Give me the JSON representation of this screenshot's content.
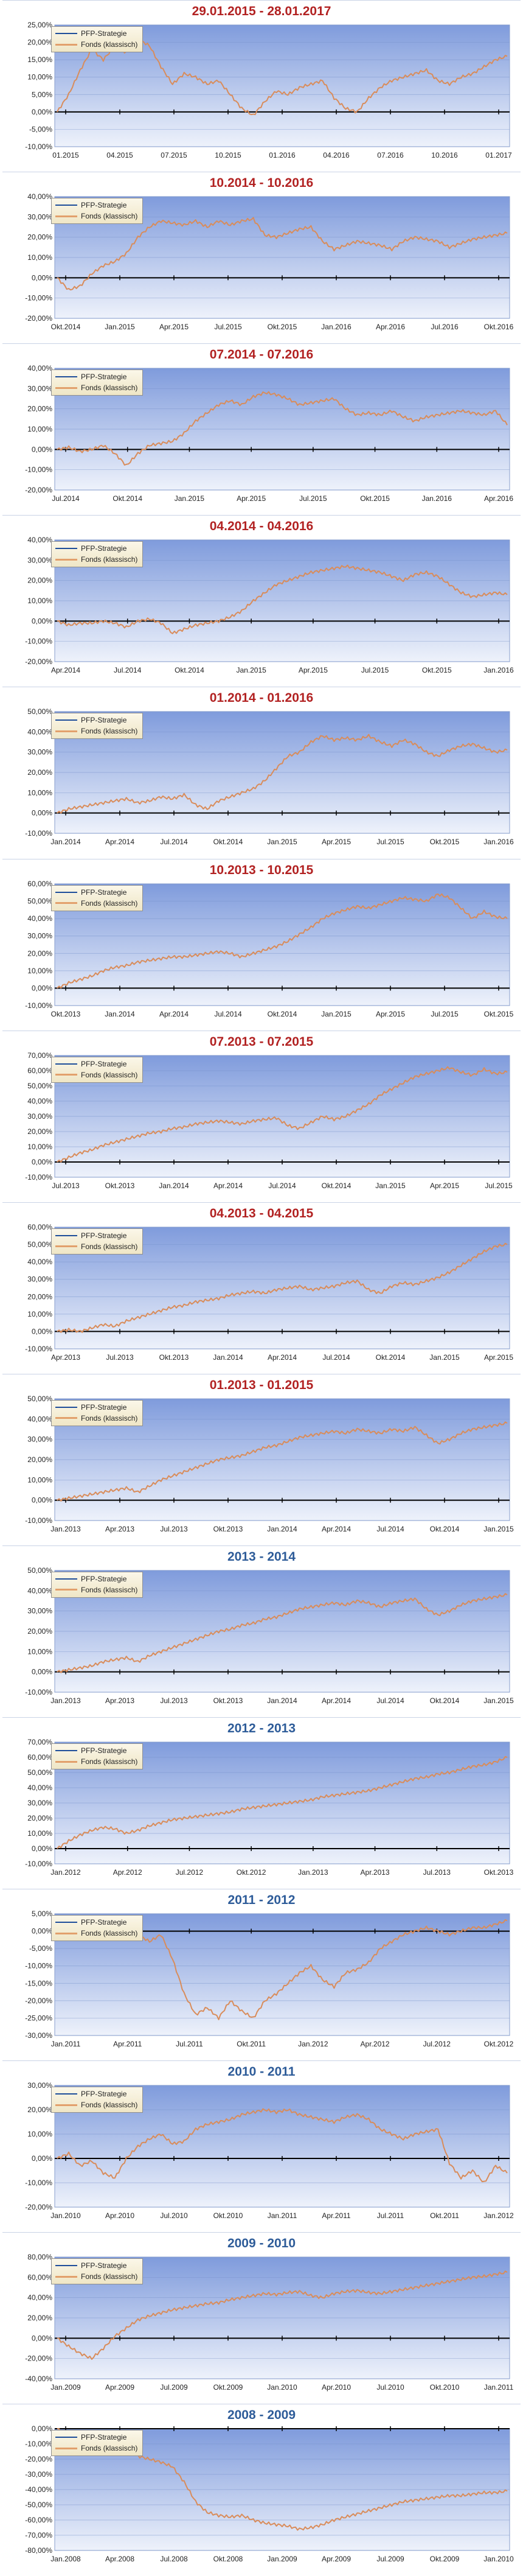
{
  "colors": {
    "plot_bg_top": "#7f9bdc",
    "plot_bg_bottom": "#eef2fb",
    "fund_line": "#d98c5a",
    "strategy_line": "#1f4e9a",
    "title_red": "#b22222",
    "title_blue": "#2e5c99",
    "zero_axis": "#000000",
    "gridline": "#7590c8"
  },
  "legend": {
    "strategy": "PFP-Strategie",
    "fund": "Fonds (klassisch)"
  },
  "chart_data": [
    {
      "type": "line",
      "title": "29.01.2015 - 28.01.2017",
      "title_color": "red",
      "y_ticks": [
        "25,00%",
        "20,00%",
        "15,00%",
        "10,00%",
        "5,00%",
        "0,00%",
        "-5,00%",
        "-10,00%"
      ],
      "ylim": [
        -10,
        25
      ],
      "x_ticks": [
        "01.2015",
        "04.2015",
        "07.2015",
        "10.2015",
        "01.2016",
        "04.2016",
        "07.2016",
        "10.2016",
        "01.2017"
      ],
      "series": [
        {
          "name": "Fonds (klassisch)",
          "values": [
            0,
            5,
            12,
            18,
            15,
            19,
            17,
            21,
            19,
            13,
            8,
            11,
            10,
            8,
            9,
            5,
            1,
            -1,
            3,
            6,
            5,
            7,
            8,
            9,
            4,
            1,
            0,
            4,
            7,
            9,
            10,
            11,
            12,
            9,
            8,
            10,
            11,
            13,
            15,
            16
          ]
        }
      ]
    },
    {
      "type": "line",
      "title": "10.2014 - 10.2016",
      "title_color": "red",
      "y_ticks": [
        "40,00%",
        "30,00%",
        "20,00%",
        "10,00%",
        "0,00%",
        "-10,00%",
        "-20,00%"
      ],
      "ylim": [
        -20,
        40
      ],
      "x_ticks": [
        "Okt.2014",
        "Jan.2015",
        "Apr.2015",
        "Jul.2015",
        "Okt.2015",
        "Jan.2016",
        "Apr.2016",
        "Jul.2016",
        "Okt.2016"
      ],
      "series": [
        {
          "name": "Fonds (klassisch)",
          "values": [
            0,
            -6,
            -4,
            2,
            6,
            8,
            12,
            20,
            25,
            28,
            27,
            26,
            28,
            25,
            28,
            26,
            28,
            29,
            21,
            20,
            22,
            24,
            25,
            18,
            14,
            16,
            18,
            17,
            16,
            14,
            18,
            20,
            19,
            18,
            15,
            17,
            19,
            20,
            21,
            22
          ]
        }
      ]
    },
    {
      "type": "line",
      "title": "07.2014 - 07.2016",
      "title_color": "red",
      "y_ticks": [
        "40,00%",
        "30,00%",
        "20,00%",
        "10,00%",
        "0,00%",
        "-10,00%",
        "-20,00%"
      ],
      "ylim": [
        -20,
        40
      ],
      "x_ticks": [
        "Jul.2014",
        "Okt.2014",
        "Jan.2015",
        "Apr.2015",
        "Jul.2015",
        "Okt.2015",
        "Jan.2016",
        "Apr.2016"
      ],
      "series": [
        {
          "name": "Fonds (klassisch)",
          "values": [
            0,
            1,
            -1,
            0,
            2,
            -2,
            -8,
            -2,
            2,
            3,
            4,
            8,
            14,
            18,
            22,
            24,
            22,
            26,
            28,
            27,
            25,
            22,
            23,
            24,
            25,
            20,
            17,
            18,
            17,
            19,
            16,
            14,
            16,
            17,
            18,
            19,
            18,
            17,
            19,
            12
          ]
        }
      ]
    },
    {
      "type": "line",
      "title": "04.2014 - 04.2016",
      "title_color": "red",
      "y_ticks": [
        "40,00%",
        "30,00%",
        "20,00%",
        "10,00%",
        "0,00%",
        "-10,00%",
        "-20,00%"
      ],
      "ylim": [
        -20,
        40
      ],
      "x_ticks": [
        "Apr.2014",
        "Jul.2014",
        "Okt.2014",
        "Jan.2015",
        "Apr.2015",
        "Jul.2015",
        "Okt.2015",
        "Jan.2016"
      ],
      "series": [
        {
          "name": "Fonds (klassisch)",
          "values": [
            0,
            -2,
            -1,
            -1,
            0,
            -1,
            -3,
            0,
            1,
            -1,
            -6,
            -4,
            -2,
            -1,
            0,
            2,
            5,
            10,
            14,
            18,
            20,
            22,
            24,
            25,
            26,
            27,
            26,
            25,
            24,
            22,
            20,
            23,
            24,
            22,
            18,
            14,
            12,
            13,
            14,
            13
          ]
        }
      ]
    },
    {
      "type": "line",
      "title": "01.2014 - 01.2016",
      "title_color": "red",
      "y_ticks": [
        "50,00%",
        "40,00%",
        "30,00%",
        "20,00%",
        "10,00%",
        "0,00%",
        "-10,00%"
      ],
      "ylim": [
        -10,
        50
      ],
      "x_ticks": [
        "Jan.2014",
        "Apr.2014",
        "Jul.2014",
        "Okt.2014",
        "Jan.2015",
        "Apr.2015",
        "Jul.2015",
        "Okt.2015",
        "Jan.2016"
      ],
      "series": [
        {
          "name": "Fonds (klassisch)",
          "values": [
            0,
            2,
            3,
            4,
            5,
            6,
            7,
            5,
            6,
            8,
            7,
            9,
            4,
            2,
            6,
            8,
            10,
            12,
            16,
            22,
            28,
            30,
            35,
            38,
            36,
            37,
            36,
            38,
            35,
            33,
            36,
            34,
            30,
            28,
            31,
            33,
            34,
            32,
            30,
            31
          ]
        }
      ]
    },
    {
      "type": "line",
      "title": "10.2013 - 10.2015",
      "title_color": "red",
      "y_ticks": [
        "60,00%",
        "50,00%",
        "40,00%",
        "30,00%",
        "20,00%",
        "10,00%",
        "0,00%",
        "-10,00%"
      ],
      "ylim": [
        -10,
        60
      ],
      "x_ticks": [
        "Okt.2013",
        "Jan.2014",
        "Apr.2014",
        "Jul.2014",
        "Okt.2014",
        "Jan.2015",
        "Apr.2015",
        "Jul.2015",
        "Okt.2015"
      ],
      "series": [
        {
          "name": "Fonds (klassisch)",
          "values": [
            0,
            3,
            5,
            7,
            10,
            12,
            13,
            15,
            16,
            17,
            18,
            18,
            19,
            20,
            21,
            20,
            18,
            20,
            22,
            24,
            27,
            31,
            35,
            40,
            43,
            45,
            47,
            46,
            48,
            50,
            52,
            51,
            50,
            54,
            52,
            46,
            40,
            44,
            41,
            40
          ]
        }
      ]
    },
    {
      "type": "line",
      "title": "07.2013 - 07.2015",
      "title_color": "red",
      "y_ticks": [
        "70,00%",
        "60,00%",
        "50,00%",
        "40,00%",
        "30,00%",
        "20,00%",
        "10,00%",
        "0,00%",
        "-10,00%"
      ],
      "ylim": [
        -10,
        70
      ],
      "x_ticks": [
        "Jul.2013",
        "Okt.2013",
        "Jan.2014",
        "Apr.2014",
        "Jul.2014",
        "Okt.2014",
        "Jan.2015",
        "Apr.2015",
        "Jul.2015"
      ],
      "series": [
        {
          "name": "Fonds (klassisch)",
          "values": [
            0,
            3,
            6,
            8,
            11,
            13,
            15,
            17,
            19,
            20,
            22,
            23,
            25,
            26,
            27,
            26,
            25,
            27,
            28,
            29,
            24,
            22,
            26,
            30,
            28,
            30,
            34,
            38,
            44,
            48,
            52,
            56,
            58,
            60,
            62,
            59,
            57,
            61,
            58,
            59
          ]
        }
      ]
    },
    {
      "type": "line",
      "title": "04.2013 - 04.2015",
      "title_color": "red",
      "y_ticks": [
        "60,00%",
        "50,00%",
        "40,00%",
        "30,00%",
        "20,00%",
        "10,00%",
        "0,00%",
        "-10,00%"
      ],
      "ylim": [
        -10,
        60
      ],
      "x_ticks": [
        "Apr.2013",
        "Jul.2013",
        "Okt.2013",
        "Jan.2014",
        "Apr.2014",
        "Jul.2014",
        "Okt.2014",
        "Jan.2015",
        "Apr.2015"
      ],
      "series": [
        {
          "name": "Fonds (klassisch)",
          "values": [
            0,
            1,
            0,
            2,
            4,
            3,
            6,
            8,
            10,
            12,
            14,
            15,
            17,
            18,
            19,
            21,
            22,
            23,
            22,
            24,
            25,
            26,
            24,
            25,
            26,
            28,
            29,
            24,
            22,
            26,
            28,
            27,
            29,
            31,
            34,
            38,
            42,
            46,
            49,
            50
          ]
        }
      ]
    },
    {
      "type": "line",
      "title": "01.2013 - 01.2015",
      "title_color": "red",
      "y_ticks": [
        "50,00%",
        "40,00%",
        "30,00%",
        "20,00%",
        "10,00%",
        "0,00%",
        "-10,00%"
      ],
      "ylim": [
        -10,
        50
      ],
      "x_ticks": [
        "Jan.2013",
        "Apr.2013",
        "Jul.2013",
        "Okt.2013",
        "Jan.2014",
        "Apr.2014",
        "Jul.2014",
        "Okt.2014",
        "Jan.2015"
      ],
      "series": [
        {
          "name": "Fonds (klassisch)",
          "values": [
            0,
            1,
            2,
            3,
            4,
            5,
            6,
            4,
            7,
            10,
            12,
            14,
            16,
            18,
            20,
            21,
            22,
            24,
            26,
            27,
            29,
            31,
            32,
            33,
            34,
            33,
            35,
            34,
            33,
            35,
            34,
            36,
            32,
            28,
            30,
            33,
            35,
            36,
            37,
            38
          ]
        }
      ]
    },
    {
      "type": "line",
      "title": "2013 - 2014",
      "title_color": "blue",
      "y_ticks": [
        "50,00%",
        "40,00%",
        "30,00%",
        "20,00%",
        "10,00%",
        "0,00%",
        "-10,00%"
      ],
      "ylim": [
        -10,
        50
      ],
      "x_ticks": [
        "Jan.2013",
        "Apr.2013",
        "Jul.2013",
        "Okt.2013",
        "Jan.2014",
        "Apr.2014",
        "Jul.2014",
        "Okt.2014",
        "Jan.2015"
      ],
      "series": [
        {
          "name": "Fonds (klassisch)",
          "values": [
            0,
            1,
            2,
            3,
            5,
            6,
            7,
            5,
            8,
            10,
            12,
            14,
            16,
            18,
            20,
            21,
            23,
            24,
            26,
            27,
            29,
            31,
            32,
            33,
            34,
            33,
            35,
            34,
            32,
            34,
            35,
            36,
            31,
            28,
            30,
            33,
            35,
            36,
            37,
            38
          ]
        }
      ]
    },
    {
      "type": "line",
      "title": "2012 - 2013",
      "title_color": "blue",
      "y_ticks": [
        "70,00%",
        "60,00%",
        "50,00%",
        "40,00%",
        "30,00%",
        "20,00%",
        "10,00%",
        "0,00%",
        "-10,00%"
      ],
      "ylim": [
        -10,
        70
      ],
      "x_ticks": [
        "Jan.2012",
        "Apr.2012",
        "Jul.2012",
        "Okt.2012",
        "Jan.2013",
        "Apr.2013",
        "Jul.2013",
        "Okt.2013"
      ],
      "series": [
        {
          "name": "Fonds (klassisch)",
          "values": [
            0,
            5,
            9,
            12,
            14,
            13,
            10,
            12,
            15,
            17,
            19,
            20,
            21,
            22,
            23,
            24,
            26,
            27,
            28,
            29,
            30,
            31,
            32,
            34,
            35,
            36,
            37,
            38,
            40,
            42,
            44,
            46,
            47,
            49,
            50,
            52,
            54,
            55,
            57,
            60
          ]
        }
      ]
    },
    {
      "type": "line",
      "title": "2011 - 2012",
      "title_color": "blue",
      "y_ticks": [
        "5,00%",
        "0,00%",
        "-5,00%",
        "-10,00%",
        "-15,00%",
        "-20,00%",
        "-25,00%",
        "-30,00%"
      ],
      "ylim": [
        -30,
        5
      ],
      "x_ticks": [
        "Jan.2011",
        "Apr.2011",
        "Jul.2011",
        "Okt.2011",
        "Jan.2012",
        "Apr.2012",
        "Jul.2012",
        "Okt.2012"
      ],
      "series": [
        {
          "name": "Fonds (klassisch)",
          "values": [
            0,
            1,
            -1,
            0,
            -2,
            0,
            -1,
            -1,
            -3,
            -1,
            -8,
            -18,
            -24,
            -22,
            -25,
            -20,
            -23,
            -25,
            -20,
            -18,
            -15,
            -12,
            -10,
            -14,
            -16,
            -12,
            -11,
            -9,
            -5,
            -3,
            -1,
            0,
            1,
            0,
            -1,
            0,
            1,
            1,
            2,
            3
          ]
        }
      ]
    },
    {
      "type": "line",
      "title": "2010 - 2011",
      "title_color": "blue",
      "y_ticks": [
        "30,00%",
        "20,00%",
        "10,00%",
        "0,00%",
        "-10,00%",
        "-20,00%"
      ],
      "ylim": [
        -20,
        30
      ],
      "x_ticks": [
        "Jan.2010",
        "Apr.2010",
        "Jul.2010",
        "Okt.2010",
        "Jan.2011",
        "Apr.2011",
        "Jul.2011",
        "Okt.2011",
        "Jan.2012"
      ],
      "series": [
        {
          "name": "Fonds (klassisch)",
          "values": [
            0,
            2,
            -3,
            -1,
            -6,
            -8,
            0,
            5,
            8,
            10,
            6,
            7,
            12,
            14,
            15,
            16,
            18,
            19,
            20,
            19,
            20,
            18,
            17,
            16,
            15,
            17,
            18,
            16,
            12,
            10,
            8,
            10,
            11,
            12,
            -2,
            -8,
            -5,
            -10,
            -3,
            -6
          ]
        }
      ]
    },
    {
      "type": "line",
      "title": "2009 - 2010",
      "title_color": "blue",
      "y_ticks": [
        "80,00%",
        "60,00%",
        "40,00%",
        "20,00%",
        "0,00%",
        "-20,00%",
        "-40,00%"
      ],
      "ylim": [
        -40,
        80
      ],
      "x_ticks": [
        "Jan.2009",
        "Apr.2009",
        "Jul.2009",
        "Okt.2009",
        "Jan.2010",
        "Apr.2010",
        "Jul.2010",
        "Okt.2010",
        "Jan.2011"
      ],
      "series": [
        {
          "name": "Fonds (klassisch)",
          "values": [
            0,
            -8,
            -15,
            -20,
            -10,
            2,
            10,
            18,
            22,
            25,
            28,
            30,
            32,
            34,
            35,
            38,
            40,
            42,
            44,
            43,
            45,
            46,
            42,
            40,
            44,
            46,
            47,
            45,
            44,
            46,
            48,
            50,
            52,
            54,
            56,
            58,
            60,
            61,
            63,
            65
          ]
        }
      ]
    },
    {
      "type": "line",
      "title": "2008 - 2009",
      "title_color": "blue",
      "y_ticks": [
        "0,00%",
        "-10,00%",
        "-20,00%",
        "-30,00%",
        "-40,00%",
        "-50,00%",
        "-60,00%",
        "-70,00%",
        "-80,00%"
      ],
      "ylim": [
        -80,
        0
      ],
      "x_ticks": [
        "Jan.2008",
        "Apr.2008",
        "Jul.2008",
        "Okt.2008",
        "Jan.2009",
        "Apr.2009",
        "Jul.2009",
        "Okt.2009",
        "Jan.2010"
      ],
      "series": [
        {
          "name": "Fonds (klassisch)",
          "values": [
            0,
            -5,
            -10,
            -12,
            -8,
            -10,
            -14,
            -18,
            -20,
            -22,
            -25,
            -35,
            -48,
            -55,
            -57,
            -58,
            -57,
            -60,
            -62,
            -63,
            -64,
            -66,
            -65,
            -63,
            -60,
            -58,
            -56,
            -54,
            -52,
            -50,
            -48,
            -47,
            -46,
            -45,
            -44,
            -44,
            -43,
            -42,
            -42,
            -41
          ]
        }
      ]
    }
  ]
}
